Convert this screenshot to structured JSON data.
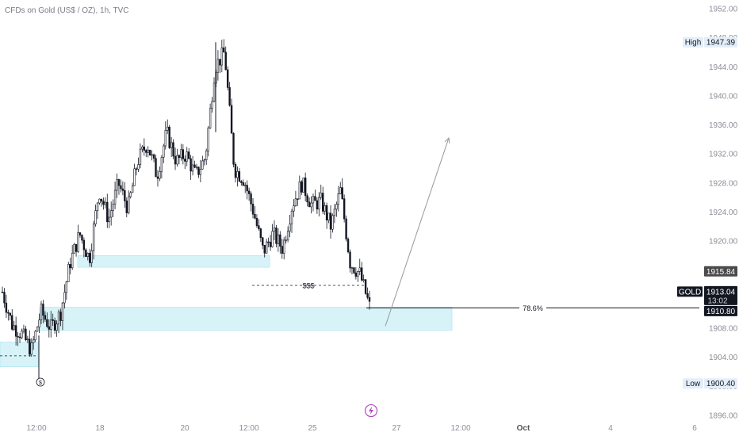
{
  "header": {
    "symbol_title": "CFDs on Gold (US$ / OZ), 1h, TVC"
  },
  "colors": {
    "candle": "#131722",
    "zone_fill": "#d7f3f8",
    "zone_stroke": "#a7e3ee",
    "arrow": "#9598a1",
    "price_tag_bg": "#131722",
    "high_low_bg": "#e3eef9",
    "last_tag_bg": "#4a4a4a",
    "event_icon": "#b040c0"
  },
  "icons": {
    "event": "lightning-icon",
    "dividend": "dollar-circle-icon"
  },
  "chart_data": {
    "type": "candlestick",
    "title": "CFDs on Gold (US$ / OZ), 1h, TVC",
    "y_axis": {
      "ticks": [
        "1952.00",
        "1948.00",
        "1944.00",
        "1940.00",
        "1936.00",
        "1932.00",
        "1928.00",
        "1924.00",
        "1920.00",
        "1916.00",
        "1908.00",
        "1904.00",
        "1900.00",
        "1896.00"
      ],
      "range": [
        1896,
        1952
      ]
    },
    "x_axis": {
      "ticks": [
        "12:00",
        "18",
        "20",
        "12:00",
        "25",
        "27",
        "12:00",
        "Oct",
        "4",
        "6"
      ]
    },
    "price_labels": {
      "high_label": "High",
      "high_value": "1947.39",
      "low_label": "Low",
      "low_value": "1900.40",
      "symbol": "GOLD",
      "current": "1913.04",
      "countdown": "13:02",
      "fib_level": "1910.80",
      "last_close": "1915.84"
    },
    "annotations": {
      "fib_text": "78.6%",
      "liquidity_text": "$$$"
    },
    "key_levels": {
      "upper_zone": [
        1916.4,
        1918.0
      ],
      "lower_zone": [
        1907.7,
        1910.9
      ],
      "left_zone": [
        1902.7,
        1906.1
      ],
      "fib_line": 1910.8,
      "liquidity_line": 1913.9,
      "arrow_target": 1934.2
    },
    "close_path": [
      1913.0,
      1908.5,
      1907.2,
      1905.0,
      1910.3,
      1908.0,
      1910.0,
      1917.0,
      1921.0,
      1917.5,
      1927.0,
      1923.0,
      1928.0,
      1924.5,
      1931.0,
      1933.5,
      1929.0,
      1935.0,
      1931.0,
      1932.0,
      1929.0,
      1931.5,
      1944.0,
      1946.0,
      1930.0,
      1928.5,
      1924.0,
      1918.5,
      1921.0,
      1919.0,
      1925.0,
      1928.0,
      1925.0,
      1925.5,
      1922.0,
      1927.0,
      1917.0,
      1915.5,
      1911.0
    ]
  }
}
